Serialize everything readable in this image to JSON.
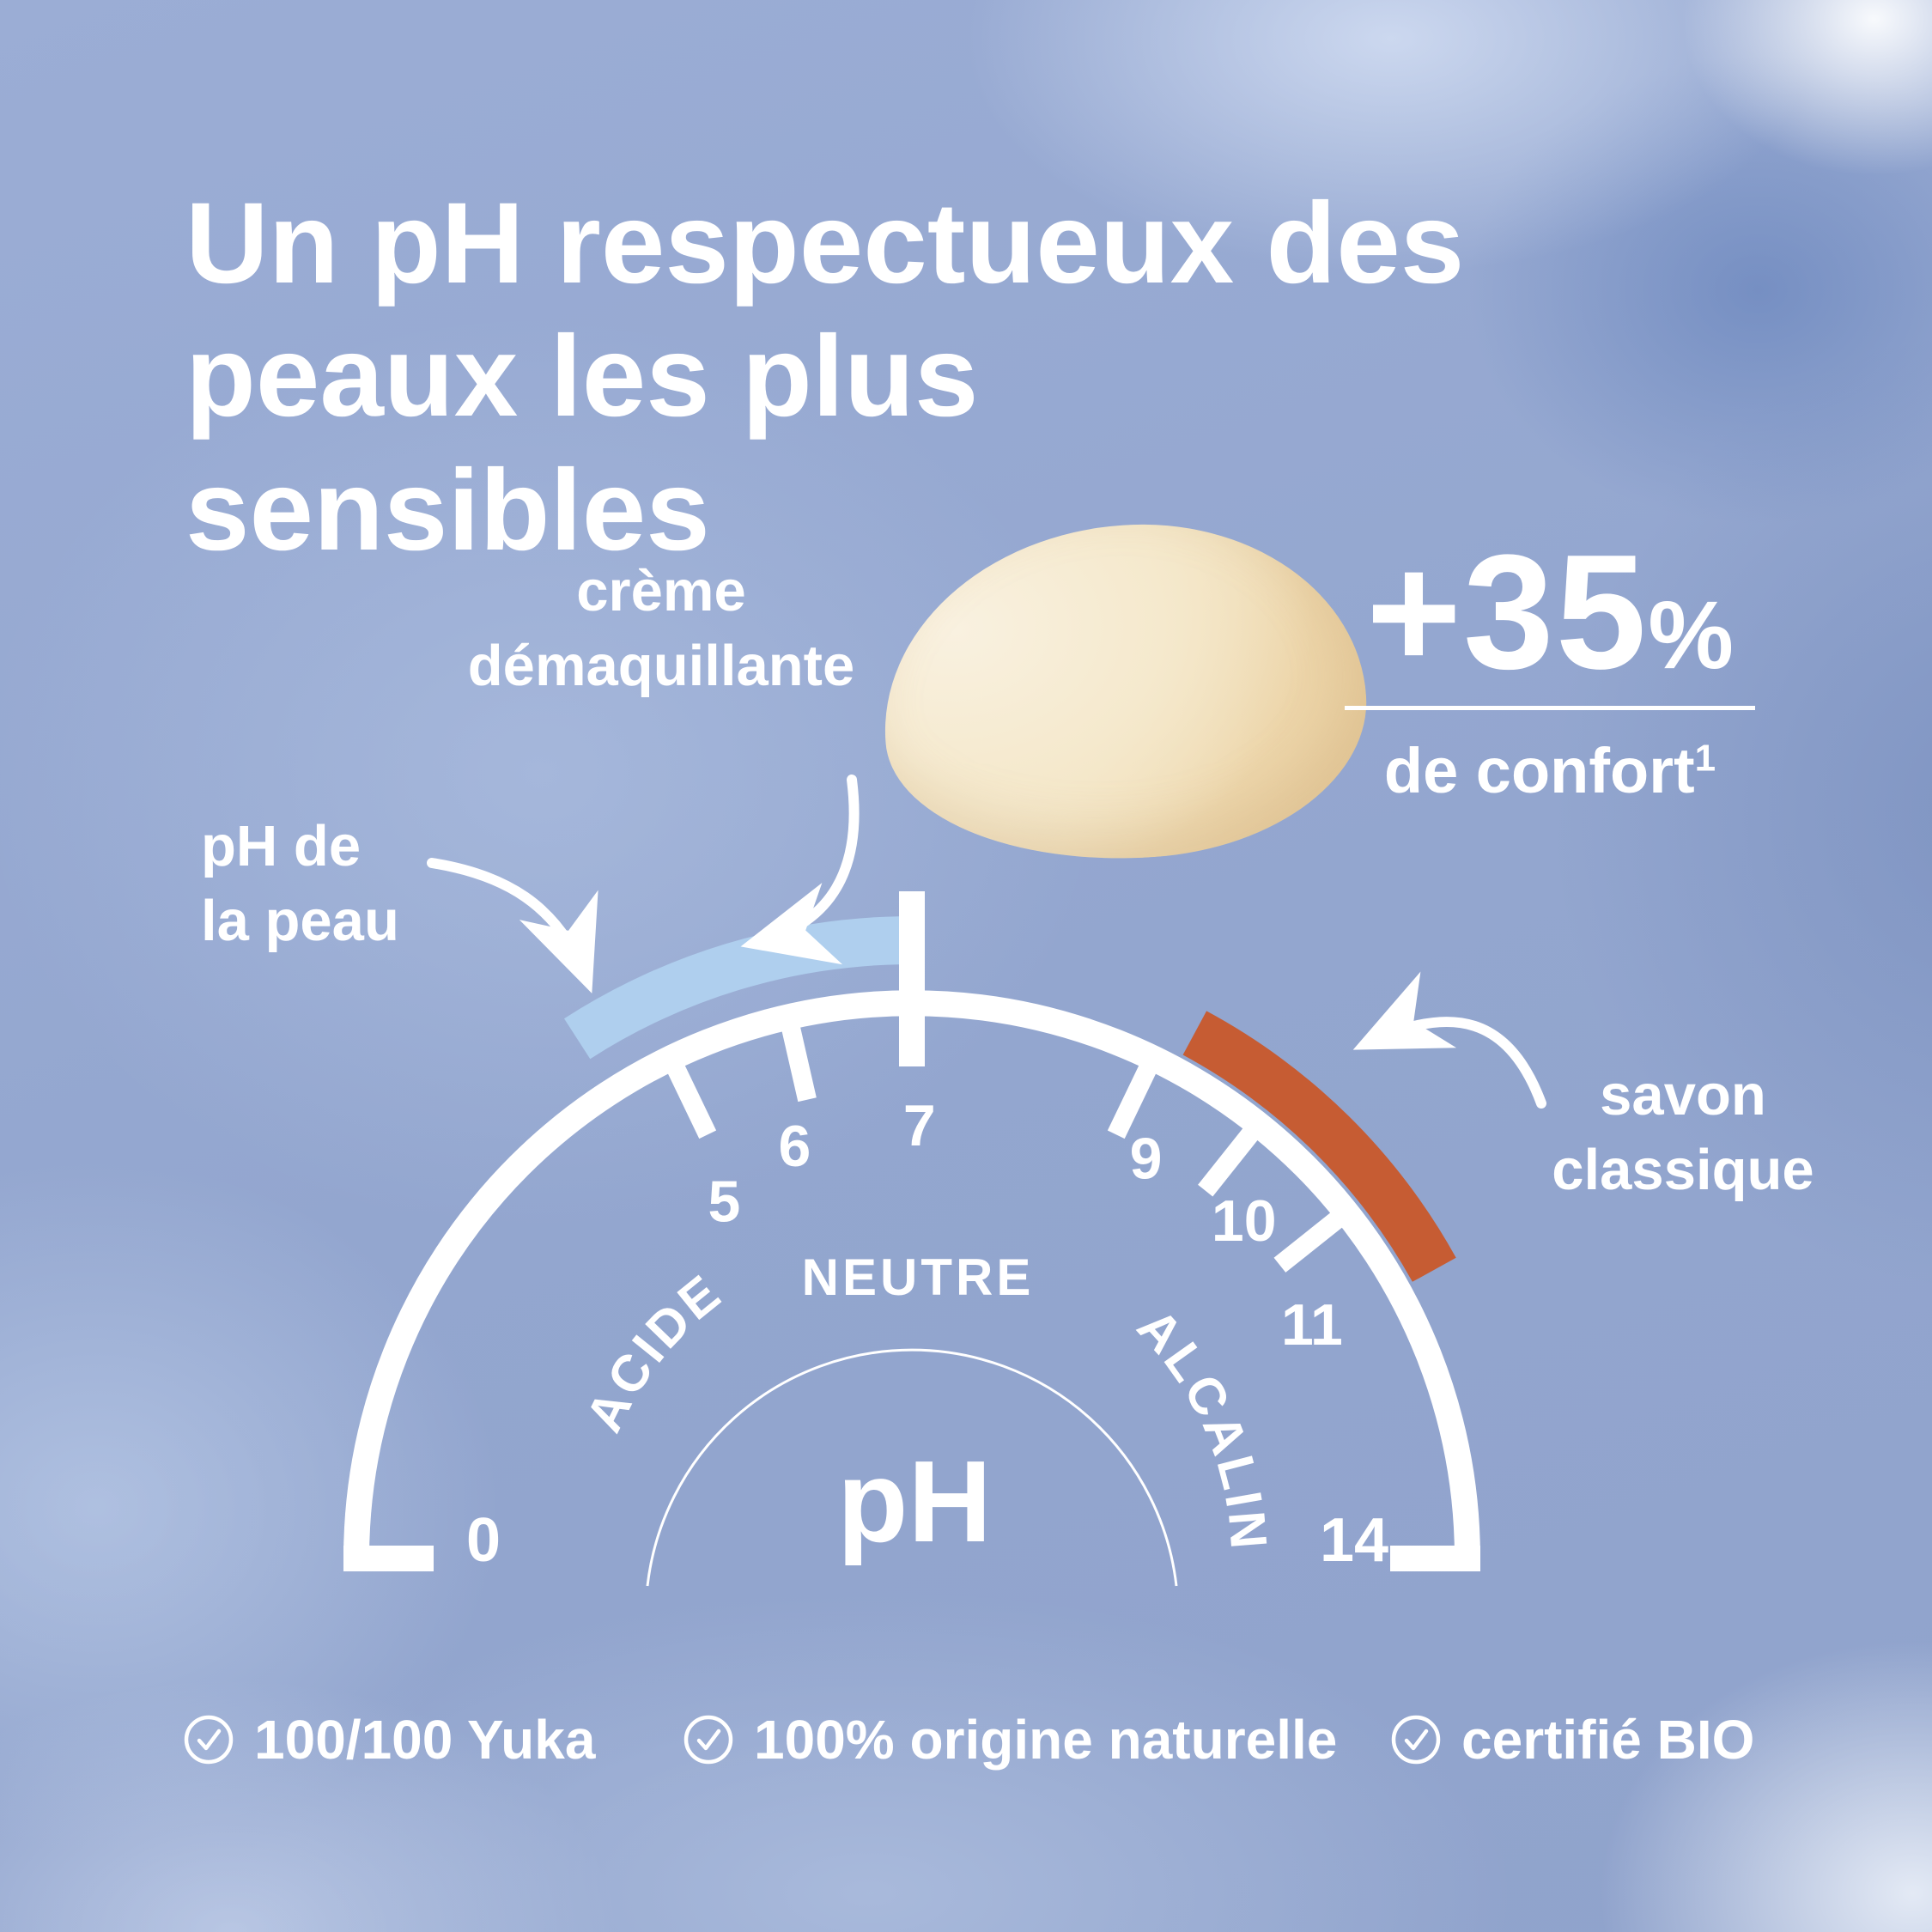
{
  "title": {
    "line1": "Un pH respectueux des",
    "line2": "peaux les plus sensibles"
  },
  "annotations": {
    "cleansing_cream": {
      "line1": "crème",
      "line2": "démaquillante"
    },
    "skin_ph": {
      "line1": "pH de",
      "line2": "la peau"
    },
    "classic_soap": {
      "line1": "savon",
      "line2": "classique"
    }
  },
  "stat": {
    "value": "+35",
    "unit": "%",
    "caption": "de confort",
    "footnote": "1"
  },
  "gauge": {
    "unit": "pH",
    "min": "0",
    "max": "14",
    "scale_min": 0,
    "scale_max": 14,
    "zones": {
      "acid": "ACIDE",
      "neutral": "NEUTRE",
      "alkaline": "ALCALIN"
    },
    "ticks": [
      {
        "ph": 5,
        "label": "5"
      },
      {
        "ph": 6,
        "label": "6"
      },
      {
        "ph": 7,
        "label": "7",
        "major": true
      },
      {
        "ph": 9,
        "label": "9"
      },
      {
        "ph": 10,
        "label": "10"
      },
      {
        "ph": 11,
        "label": "11"
      }
    ],
    "bands": [
      {
        "name": "skin-ph",
        "ph_from": 4.45,
        "ph_to": 6.93,
        "color": "#AFCFEE"
      },
      {
        "name": "classic-soap",
        "ph_from": 9.2,
        "ph_to": 11.75,
        "color": "#C65C33"
      }
    ]
  },
  "badges": [
    {
      "label": "100/100 Yuka"
    },
    {
      "label": "100% origine naturelle"
    },
    {
      "label": "certifié BIO"
    }
  ],
  "colors": {
    "text": "#FFFFFF",
    "skin_band": "#AFCFEE",
    "classic_band": "#C65C33",
    "soap_light": "#F6ECD5",
    "soap_dark": "#E9CE9E"
  }
}
